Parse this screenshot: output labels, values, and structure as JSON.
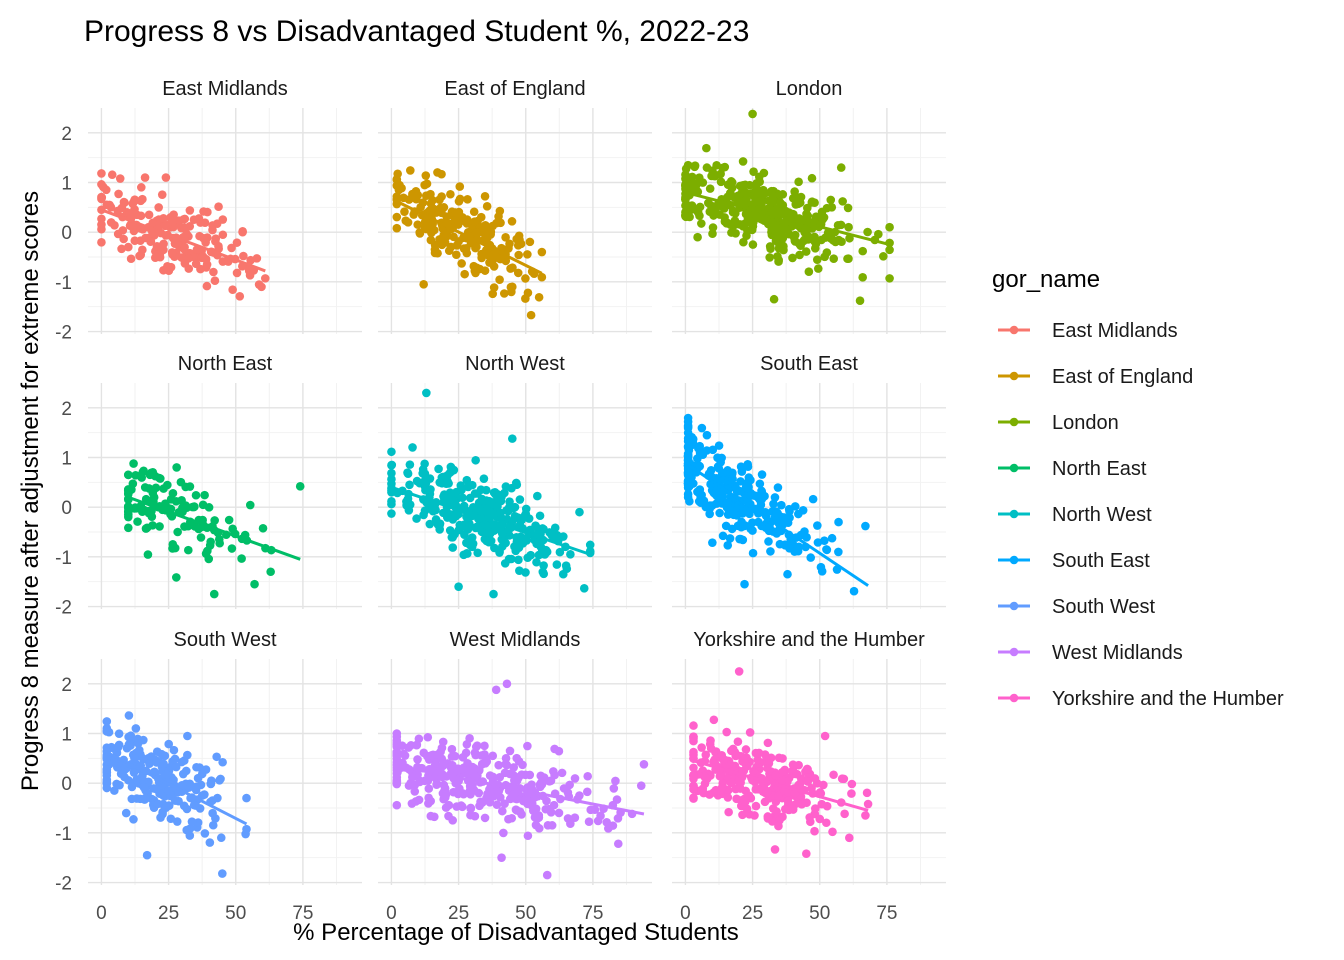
{
  "chart_data": {
    "type": "scatter",
    "title": "Progress 8 vs Disadvantaged Student %, 2022-23",
    "xlabel": "% Percentage of Disadvantaged Students",
    "ylabel": "Progress 8 measure after adjustment for extreme scores",
    "x_ticks": [
      0,
      25,
      50,
      75
    ],
    "y_ticks": [
      -2,
      -1,
      0,
      1,
      2
    ],
    "xlim": [
      -5,
      97
    ],
    "ylim": [
      -2.05,
      2.5
    ],
    "grid": true,
    "legend": {
      "title": "gor_name",
      "position": "right"
    },
    "trend": "linear fit line per panel",
    "panels": [
      {
        "name": "East Midlands",
        "color": "#F8766D",
        "x_range": [
          0,
          61
        ],
        "center": [
          26,
          -0.04
        ],
        "n": 190,
        "fit": [
          [
            0,
            0.45
          ],
          [
            61,
            -0.78
          ]
        ],
        "extremes": [
          [
            2,
            0.55
          ],
          [
            7,
            1.08
          ],
          [
            24,
            1.1
          ],
          [
            61,
            -0.93
          ],
          [
            55,
            -0.78
          ],
          [
            10,
            -0.3
          ]
        ]
      },
      {
        "name": "East of England",
        "color": "#CD9600",
        "x_range": [
          2,
          56
        ],
        "center": [
          25,
          0.1
        ],
        "n": 220,
        "fit": [
          [
            2,
            0.62
          ],
          [
            56,
            -0.83
          ]
        ],
        "extremes": [
          [
            3,
            0.95
          ],
          [
            52,
            -1.67
          ],
          [
            45,
            -1.1
          ],
          [
            56,
            -0.4
          ],
          [
            12,
            -1.05
          ]
        ]
      },
      {
        "name": "London",
        "color": "#7CAE00",
        "x_range": [
          0,
          76
        ],
        "center": [
          30,
          0.45
        ],
        "n": 350,
        "fit": [
          [
            0,
            0.8
          ],
          [
            76,
            -0.25
          ]
        ],
        "extremes": [
          [
            25,
            2.38
          ],
          [
            1,
            1.35
          ],
          [
            76,
            0.1
          ],
          [
            33,
            -1.35
          ],
          [
            65,
            -1.38
          ],
          [
            8,
            1.3
          ],
          [
            58,
            1.3
          ]
        ]
      },
      {
        "name": "North East",
        "color": "#00BE67",
        "x_range": [
          10,
          74
        ],
        "center": [
          28,
          -0.25
        ],
        "n": 130,
        "fit": [
          [
            10,
            0.2
          ],
          [
            74,
            -1.05
          ]
        ],
        "extremes": [
          [
            10,
            0.65
          ],
          [
            74,
            0.42
          ],
          [
            42,
            -1.75
          ],
          [
            63,
            -1.3
          ],
          [
            57,
            -1.55
          ],
          [
            28,
            0.8
          ]
        ]
      },
      {
        "name": "North West",
        "color": "#00BFC4",
        "x_range": [
          0,
          74
        ],
        "center": [
          32,
          -0.3
        ],
        "n": 330,
        "fit": [
          [
            0,
            0.4
          ],
          [
            74,
            -0.95
          ]
        ],
        "extremes": [
          [
            13,
            2.3
          ],
          [
            45,
            1.38
          ],
          [
            0,
            0.3
          ],
          [
            38,
            -1.75
          ],
          [
            70,
            -0.1
          ],
          [
            25,
            -1.6
          ]
        ]
      },
      {
        "name": "South East",
        "color": "#00A9FF",
        "x_range": [
          1,
          68
        ],
        "center": [
          18,
          0.05
        ],
        "n": 300,
        "fit": [
          [
            1,
            0.85
          ],
          [
            68,
            -1.58
          ]
        ],
        "extremes": [
          [
            8,
            1.45
          ],
          [
            22,
            -1.55
          ],
          [
            67,
            -0.38
          ],
          [
            57,
            -0.3
          ],
          [
            38,
            -1.35
          ]
        ]
      },
      {
        "name": "South West",
        "color": "#619CFF",
        "x_range": [
          2,
          54
        ],
        "center": [
          20,
          0.1
        ],
        "n": 230,
        "fit": [
          [
            2,
            0.62
          ],
          [
            54,
            -0.82
          ]
        ],
        "extremes": [
          [
            2,
            1.05
          ],
          [
            45,
            -1.82
          ],
          [
            17,
            -1.45
          ],
          [
            54,
            -0.3
          ],
          [
            32,
            0.95
          ]
        ]
      },
      {
        "name": "West Midlands",
        "color": "#C77CFF",
        "x_range": [
          2,
          94
        ],
        "center": [
          32,
          -0.05
        ],
        "n": 330,
        "fit": [
          [
            2,
            0.35
          ],
          [
            94,
            -0.62
          ]
        ],
        "extremes": [
          [
            43,
            2.0
          ],
          [
            39,
            1.88
          ],
          [
            58,
            -1.85
          ],
          [
            94,
            0.38
          ],
          [
            93,
            -0.05
          ],
          [
            41,
            -1.5
          ],
          [
            2,
            1.0
          ]
        ]
      },
      {
        "name": "Yorkshire and the Humber",
        "color": "#FF61CC",
        "x_range": [
          3,
          68
        ],
        "center": [
          28,
          -0.05
        ],
        "n": 280,
        "fit": [
          [
            3,
            0.45
          ],
          [
            68,
            -0.55
          ]
        ],
        "extremes": [
          [
            20,
            2.25
          ],
          [
            45,
            -1.42
          ],
          [
            52,
            0.95
          ],
          [
            61,
            -1.1
          ],
          [
            3,
            0.5
          ],
          [
            67,
            -0.65
          ]
        ]
      }
    ]
  }
}
